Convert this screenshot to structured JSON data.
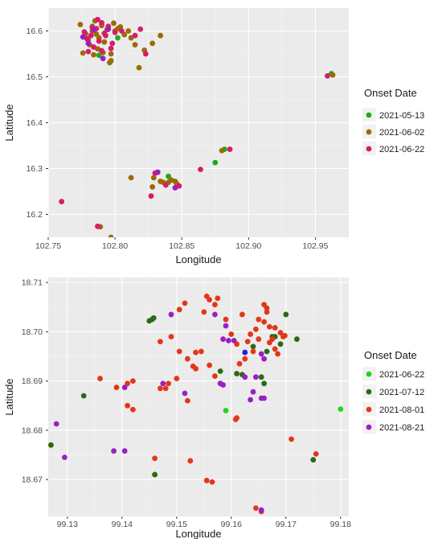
{
  "chart_data": [
    {
      "type": "scatter",
      "xlabel": "Longitude",
      "ylabel": "Latitude",
      "xlim": [
        102.75,
        102.975
      ],
      "ylim": [
        16.15,
        16.65
      ],
      "xticks": [
        102.75,
        102.8,
        102.85,
        102.9,
        102.95
      ],
      "xtick_labels": [
        "102.75",
        "102.80",
        "102.85",
        "102.90",
        "102.95"
      ],
      "yticks": [
        16.2,
        16.3,
        16.4,
        16.5,
        16.6
      ],
      "ytick_labels": [
        "16.2",
        "16.3",
        "16.4",
        "16.5",
        "16.6"
      ],
      "grid": true,
      "legend": {
        "title": "Onset Date",
        "placement": "right"
      },
      "series": [
        {
          "name": "2021-05-13",
          "color": "#1faa1f",
          "points": [
            [
              102.962,
              16.507
            ],
            [
              102.84,
              16.283
            ],
            [
              102.882,
              16.342
            ],
            [
              102.875,
              16.313
            ],
            [
              102.788,
              16.547
            ],
            [
              102.802,
              16.585
            ],
            [
              102.783,
              16.61
            ]
          ]
        },
        {
          "name": "2021-06-02",
          "color": "#9c6a00",
          "points": [
            [
              102.774,
              16.614
            ],
            [
              102.778,
              16.594
            ],
            [
              102.785,
              16.622
            ],
            [
              102.79,
              16.612
            ],
            [
              102.794,
              16.603
            ],
            [
              102.799,
              16.617
            ],
            [
              102.783,
              16.6
            ],
            [
              102.788,
              16.585
            ],
            [
              102.792,
              16.576
            ],
            [
              102.781,
              16.57
            ],
            [
              102.787,
              16.561
            ],
            [
              102.797,
              16.55
            ],
            [
              102.784,
              16.548
            ],
            [
              102.776,
              16.552
            ],
            [
              102.791,
              16.553
            ],
            [
              102.796,
              16.531
            ],
            [
              102.81,
              16.6
            ],
            [
              102.815,
              16.57
            ],
            [
              102.818,
              16.52
            ],
            [
              102.828,
              16.573
            ],
            [
              102.822,
              16.558
            ],
            [
              102.812,
              16.585
            ],
            [
              102.834,
              16.59
            ],
            [
              102.802,
              16.605
            ],
            [
              102.807,
              16.592
            ],
            [
              102.804,
              16.609
            ],
            [
              102.78,
              16.58
            ],
            [
              102.786,
              16.593
            ],
            [
              102.797,
              16.535
            ],
            [
              102.812,
              16.28
            ],
            [
              102.829,
              16.28
            ],
            [
              102.836,
              16.27
            ],
            [
              102.842,
              16.275
            ],
            [
              102.828,
              16.26
            ],
            [
              102.846,
              16.268
            ],
            [
              102.834,
              16.272
            ],
            [
              102.789,
              16.173
            ],
            [
              102.797,
              16.15
            ],
            [
              102.963,
              16.504
            ],
            [
              102.88,
              16.339
            ],
            [
              102.84,
              16.27
            ],
            [
              102.845,
              16.272
            ],
            [
              102.8,
              16.6
            ]
          ]
        },
        {
          "name": "2021-06-22",
          "color": "#d81b6a",
          "points": [
            [
              102.782,
              16.59
            ],
            [
              102.786,
              16.605
            ],
            [
              102.79,
              16.618
            ],
            [
              102.795,
              16.61
            ],
            [
              102.8,
              16.597
            ],
            [
              102.788,
              16.578
            ],
            [
              102.779,
              16.583
            ],
            [
              102.784,
              16.565
            ],
            [
              102.79,
              16.557
            ],
            [
              102.797,
              16.562
            ],
            [
              102.777,
              16.598
            ],
            [
              102.793,
              16.59
            ],
            [
              102.805,
              16.6
            ],
            [
              102.815,
              16.59
            ],
            [
              102.823,
              16.55
            ],
            [
              102.819,
              16.604
            ],
            [
              102.78,
              16.555
            ],
            [
              102.798,
              16.573
            ],
            [
              102.787,
              16.625
            ],
            [
              102.959,
              16.502
            ],
            [
              102.886,
              16.342
            ],
            [
              102.864,
              16.298
            ],
            [
              102.838,
              16.264
            ],
            [
              102.848,
              16.262
            ],
            [
              102.827,
              16.24
            ],
            [
              102.83,
              16.29
            ],
            [
              102.76,
              16.228
            ],
            [
              102.787,
              16.174
            ],
            [
              102.792,
              16.595
            ],
            [
              102.783,
              16.608
            ]
          ]
        },
        {
          "name": "",
          "color": "#9b1fc3",
          "points": [
            [
              102.776,
              16.587
            ],
            [
              102.784,
              16.602
            ],
            [
              102.791,
              16.54
            ],
            [
              102.78,
              16.573
            ],
            [
              102.795,
              16.604
            ],
            [
              102.832,
              16.292
            ],
            [
              102.845,
              16.258
            ]
          ]
        }
      ]
    },
    {
      "type": "scatter",
      "xlabel": "Longitude",
      "ylabel": "Latitude",
      "xlim": [
        99.1265,
        99.1815
      ],
      "ylim": [
        18.6625,
        18.711
      ],
      "xticks": [
        99.13,
        99.14,
        99.15,
        99.16,
        99.17,
        99.18
      ],
      "xtick_labels": [
        "99.13",
        "99.14",
        "99.15",
        "99.16",
        "99.17",
        "99.18"
      ],
      "yticks": [
        18.67,
        18.68,
        18.69,
        18.7,
        18.71
      ],
      "ytick_labels": [
        "18.67",
        "18.68",
        "18.69",
        "18.70",
        "18.71"
      ],
      "grid": true,
      "legend": {
        "title": "Onset Date",
        "placement": "right"
      },
      "series": [
        {
          "name": "2021-06-22",
          "color": "#22d322",
          "points": [
            [
              99.159,
              18.684
            ],
            [
              99.18,
              18.6843
            ]
          ]
        },
        {
          "name": "2021-07-12",
          "color": "#2a6a12",
          "points": [
            [
              99.133,
              18.687
            ],
            [
              99.145,
              18.7022
            ],
            [
              99.1455,
              18.7025
            ],
            [
              99.1458,
              18.7028
            ],
            [
              99.146,
              18.671
            ],
            [
              99.162,
              18.6913
            ],
            [
              99.166,
              18.6895
            ],
            [
              99.168,
              18.699
            ],
            [
              99.17,
              18.7035
            ],
            [
              99.172,
              18.6985
            ],
            [
              99.169,
              18.6975
            ],
            [
              99.158,
              18.692
            ],
            [
              99.161,
              18.6915
            ],
            [
              99.1665,
              18.696
            ],
            [
              99.164,
              18.697
            ],
            [
              99.1675,
              18.699
            ],
            [
              99.175,
              18.674
            ],
            [
              99.127,
              18.677
            ],
            [
              99.1655,
              18.6908
            ]
          ]
        },
        {
          "name": "2021-08-01",
          "color": "#e4361a",
          "points": [
            [
              99.136,
              18.6905
            ],
            [
              99.139,
              18.6887
            ],
            [
              99.141,
              18.6895
            ],
            [
              99.142,
              18.69
            ],
            [
              99.141,
              18.685
            ],
            [
              99.142,
              18.6842
            ],
            [
              99.146,
              18.6743
            ],
            [
              99.147,
              18.698
            ],
            [
              99.148,
              18.6885
            ],
            [
              99.149,
              18.699
            ],
            [
              99.1505,
              18.696
            ],
            [
              99.152,
              18.6945
            ],
            [
              99.153,
              18.693
            ],
            [
              99.1545,
              18.696
            ],
            [
              99.156,
              18.6932
            ],
            [
              99.157,
              18.691
            ],
            [
              99.158,
              18.6895
            ],
            [
              99.1535,
              18.6925
            ],
            [
              99.155,
              18.704
            ],
            [
              99.156,
              18.7065
            ],
            [
              99.157,
              18.7055
            ],
            [
              99.1575,
              18.7068
            ],
            [
              99.159,
              18.7025
            ],
            [
              99.16,
              18.6995
            ],
            [
              99.161,
              18.6975
            ],
            [
              99.162,
              18.7035
            ],
            [
              99.163,
              18.698
            ],
            [
              99.164,
              18.696
            ],
            [
              99.165,
              18.6985
            ],
            [
              99.166,
              18.702
            ],
            [
              99.1665,
              18.704
            ],
            [
              99.167,
              18.701
            ],
            [
              99.1675,
              18.6985
            ],
            [
              99.168,
              18.6965
            ],
            [
              99.1685,
              18.6955
            ],
            [
              99.169,
              18.6998
            ],
            [
              99.1695,
              18.699
            ],
            [
              99.166,
              18.7055
            ],
            [
              99.1665,
              18.7048
            ],
            [
              99.165,
              18.7025
            ],
            [
              99.1645,
              18.7005
            ],
            [
              99.1635,
              18.6995
            ],
            [
              99.1625,
              18.6945
            ],
            [
              99.1615,
              18.6935
            ],
            [
              99.15,
              18.6905
            ],
            [
              99.1485,
              18.6895
            ],
            [
              99.147,
              18.6885
            ],
            [
              99.152,
              18.686
            ],
            [
              99.1525,
              18.6738
            ],
            [
              99.1555,
              18.6698
            ],
            [
              99.1565,
              18.6695
            ],
            [
              99.1645,
              18.6642
            ],
            [
              99.1655,
              18.6635
            ],
            [
              99.171,
              18.6782
            ],
            [
              99.1755,
              18.6752
            ],
            [
              99.1505,
              18.7045
            ],
            [
              99.1515,
              18.7058
            ],
            [
              99.1555,
              18.7072
            ],
            [
              99.1535,
              18.6958
            ],
            [
              99.167,
              18.6978
            ],
            [
              99.168,
              18.7008
            ],
            [
              99.1698,
              18.6992
            ],
            [
              99.161,
              18.6825
            ],
            [
              99.1608,
              18.6822
            ]
          ]
        },
        {
          "name": "2021-08-21",
          "color": "#9b1fc3",
          "points": [
            [
              99.128,
              18.6813
            ],
            [
              99.1295,
              18.6745
            ],
            [
              99.1385,
              18.6758
            ],
            [
              99.1405,
              18.6758
            ],
            [
              99.1405,
              18.6887
            ],
            [
              99.1475,
              18.6895
            ],
            [
              99.149,
              18.7035
            ],
            [
              99.1515,
              18.6875
            ],
            [
              99.157,
              18.7035
            ],
            [
              99.159,
              18.7012
            ],
            [
              99.1605,
              18.6982
            ],
            [
              99.1595,
              18.6982
            ],
            [
              99.1585,
              18.6985
            ],
            [
              99.158,
              18.6895
            ],
            [
              99.1585,
              18.6892
            ],
            [
              99.1625,
              18.6908
            ],
            [
              99.164,
              18.6878
            ],
            [
              99.1655,
              18.6865
            ],
            [
              99.166,
              18.6865
            ],
            [
              99.1645,
              18.6908
            ],
            [
              99.1655,
              18.6638
            ],
            [
              99.1635,
              18.6862
            ],
            [
              99.166,
              18.6945
            ],
            [
              99.1655,
              18.6955
            ]
          ]
        },
        {
          "name": "",
          "color": "#2222dd",
          "points": [
            [
              99.1625,
              18.6958
            ]
          ]
        }
      ]
    }
  ]
}
